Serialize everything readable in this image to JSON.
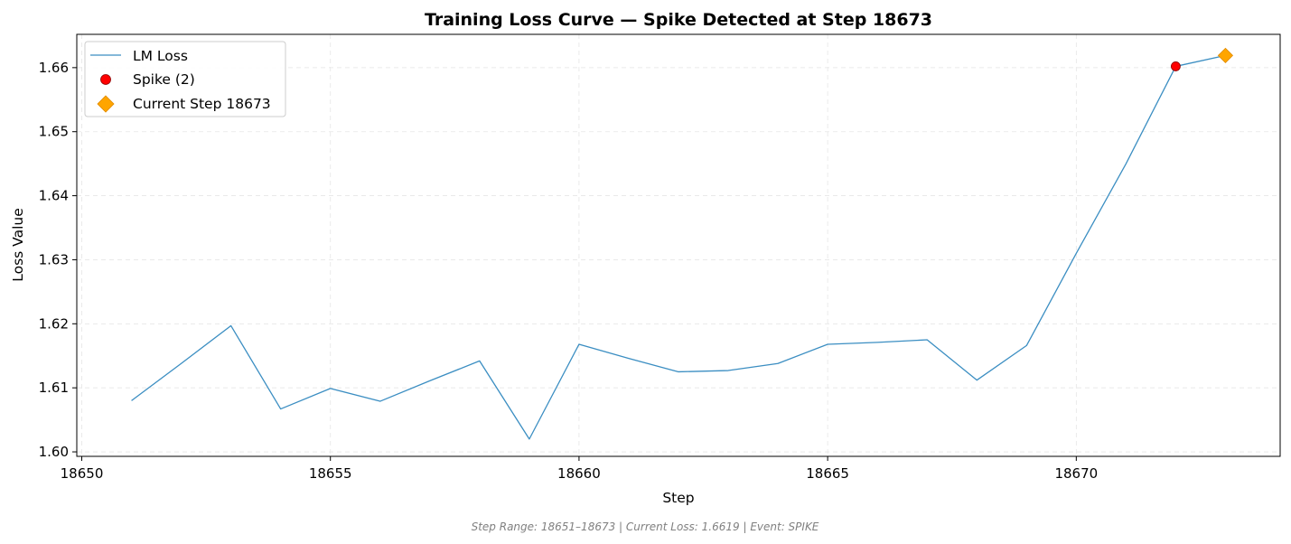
{
  "chart_data": {
    "type": "line",
    "title": "Training Loss Curve — Spike Detected at Step 18673",
    "xlabel": "Step",
    "ylabel": "Loss Value",
    "xlim": [
      18649.9,
      18674.1
    ],
    "ylim": [
      1.5993,
      1.6652
    ],
    "xticks": [
      18650,
      18655,
      18660,
      18665,
      18670
    ],
    "yticks": [
      1.6,
      1.61,
      1.62,
      1.63,
      1.64,
      1.65,
      1.66
    ],
    "xtick_labels": [
      "18650",
      "18655",
      "18660",
      "18665",
      "18670"
    ],
    "ytick_labels": [
      "1.60",
      "1.61",
      "1.62",
      "1.63",
      "1.64",
      "1.65",
      "1.66"
    ],
    "grid": true,
    "legend_position": "top-left",
    "series": [
      {
        "name": "LM Loss",
        "kind": "line",
        "color": "#3b8ec2",
        "x": [
          18651,
          18652,
          18653,
          18654,
          18655,
          18656,
          18657,
          18658,
          18659,
          18660,
          18661,
          18662,
          18663,
          18664,
          18665,
          18666,
          18667,
          18668,
          18669,
          18670,
          18671,
          18672,
          18673
        ],
        "y": [
          1.608,
          1.6138,
          1.6197,
          1.6067,
          1.6099,
          1.6079,
          1.6111,
          1.6142,
          1.602,
          1.6168,
          1.6146,
          1.6125,
          1.6127,
          1.6138,
          1.6168,
          1.6171,
          1.6175,
          1.6112,
          1.6166,
          1.631,
          1.645,
          1.6602,
          1.6619
        ]
      },
      {
        "name": "Spike (2)",
        "kind": "marker",
        "marker": "circle",
        "color": "#ff0000",
        "x": [
          18672
        ],
        "y": [
          1.6602
        ]
      },
      {
        "name": "Current Step 18673",
        "kind": "marker",
        "marker": "diamond",
        "color": "#ffa500",
        "x": [
          18673
        ],
        "y": [
          1.6619
        ]
      }
    ]
  },
  "footnote": "Step Range: 18651–18673 | Current Loss: 1.6619 | Event: SPIKE"
}
